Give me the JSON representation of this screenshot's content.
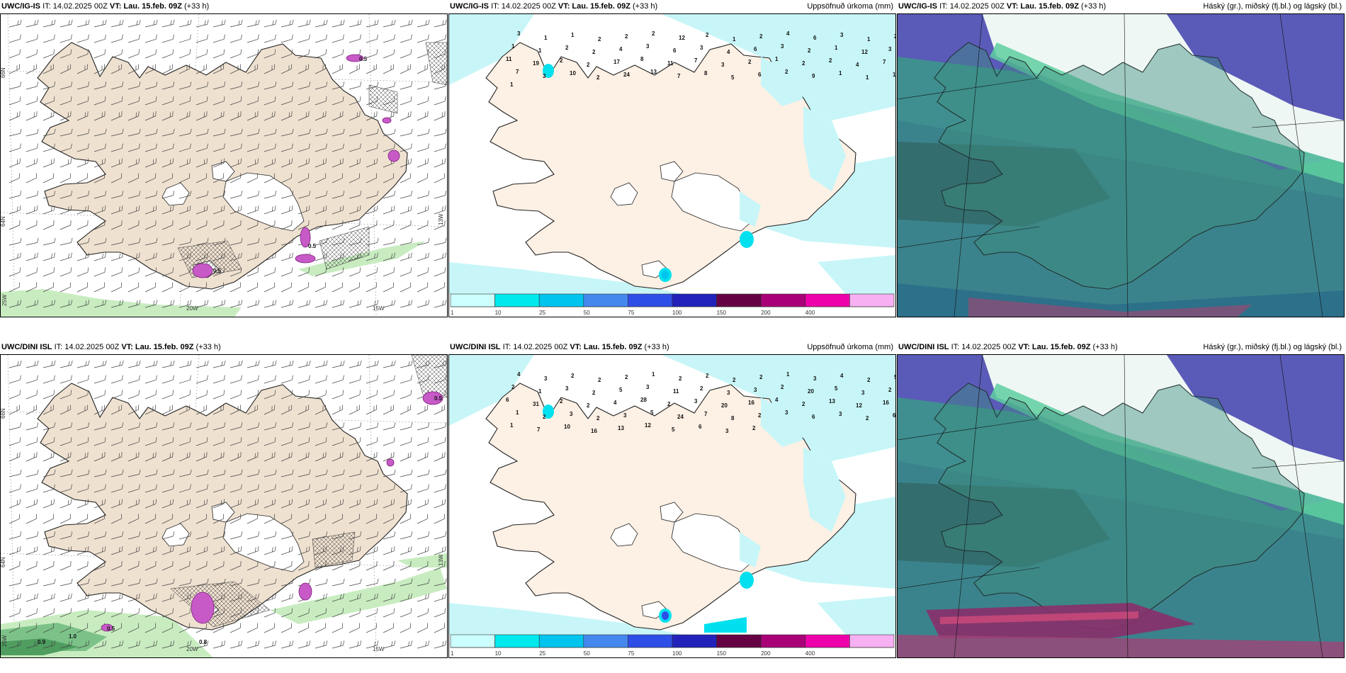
{
  "panels": [
    {
      "id": "p1",
      "model": "UWC/IG-IS",
      "it": "IT: 14.02.2025 00Z",
      "vt_label": "VT:",
      "vt": "Lau. 15.feb. 09Z",
      "lead": "(+33 h)",
      "field_title": "",
      "type": "wind",
      "lon_labels": [
        "20W",
        "15W"
      ],
      "lat_labels": [
        "66N",
        "64N",
        "25W",
        "13W"
      ],
      "values": [
        "0.5",
        "0.5",
        "0.5"
      ]
    },
    {
      "id": "p2",
      "model": "UWC/IG-IS",
      "it": "IT: 14.02.2025 00Z",
      "vt_label": "VT:",
      "vt": "Lau. 15.feb. 09Z",
      "lead": "(+33 h)",
      "field_title": "Uppsöfnuð úrkoma (mm)",
      "type": "precip",
      "values": [
        "3",
        "1",
        "1",
        "2",
        "2",
        "2",
        "12",
        "2",
        "1",
        "2",
        "4",
        "6",
        "3",
        "1",
        "2",
        "1",
        "1",
        "2",
        "2",
        "4",
        "3",
        "6",
        "3",
        "4",
        "6",
        "3",
        "2",
        "1",
        "12",
        "3",
        "11",
        "19",
        "2",
        "2",
        "17",
        "8",
        "11",
        "7",
        "3",
        "2",
        "1",
        "2",
        "2",
        "4",
        "7",
        "7",
        "3",
        "10",
        "2",
        "24",
        "13",
        "7",
        "8",
        "5",
        "6",
        "2",
        "9",
        "1",
        "1",
        "1",
        "1"
      ],
      "colorbar": {
        "ticks": [
          "1",
          "10",
          "25",
          "50",
          "75",
          "100",
          "150",
          "200",
          "400"
        ],
        "colors": [
          "#ccffff",
          "#00eaee",
          "#00c4ee",
          "#4488ee",
          "#2e4ee8",
          "#2222bb",
          "#660044",
          "#aa0077",
          "#ee00aa",
          "#f7b0f2"
        ]
      }
    },
    {
      "id": "p3",
      "model": "UWC/IG-IS",
      "it": "IT: 14.02.2025 00Z",
      "vt_label": "VT:",
      "vt": "Lau. 15.feb. 09Z",
      "lead": "(+33 h)",
      "field_title": "Háský (gr.), miðský (fj.bl.) og lágský (bl.)",
      "type": "clouds"
    },
    {
      "id": "p4",
      "model": "UWC/DINI ISL",
      "it": "IT: 14.02.2025 00Z",
      "vt_label": "VT:",
      "vt": "Lau. 15.feb. 09Z",
      "lead": "(+33 h)",
      "field_title": "",
      "type": "wind",
      "lon_labels": [
        "20W",
        "15W"
      ],
      "lat_labels": [
        "66N",
        "64N",
        "25W",
        "13W"
      ],
      "values": [
        "0.5",
        "0.9",
        "1.0",
        "0.8",
        "0.5"
      ]
    },
    {
      "id": "p5",
      "model": "UWC/DINI ISL",
      "it": "IT: 14.02.2025 00Z",
      "vt_label": "VT:",
      "vt": "Lau. 15.feb. 09Z",
      "lead": "(+33 h)",
      "field_title": "Uppsöfnuð úrkoma (mm)",
      "type": "precip",
      "values": [
        "4",
        "3",
        "2",
        "2",
        "2",
        "1",
        "2",
        "2",
        "2",
        "2",
        "1",
        "3",
        "4",
        "2",
        "5",
        "2",
        "1",
        "3",
        "2",
        "5",
        "3",
        "11",
        "2",
        "3",
        "3",
        "2",
        "20",
        "5",
        "3",
        "2",
        "6",
        "31",
        "2",
        "2",
        "4",
        "28",
        "2",
        "3",
        "20",
        "16",
        "4",
        "2",
        "13",
        "12",
        "16",
        "1",
        "2",
        "3",
        "2",
        "3",
        "5",
        "24",
        "7",
        "8",
        "2",
        "3",
        "6",
        "3",
        "2",
        "6",
        "1",
        "7",
        "10",
        "16",
        "13",
        "12",
        "5",
        "6",
        "3",
        "2"
      ],
      "colorbar": {
        "ticks": [
          "1",
          "10",
          "25",
          "50",
          "75",
          "100",
          "150",
          "200",
          "400"
        ],
        "colors": [
          "#ccffff",
          "#00eaee",
          "#00c4ee",
          "#4488ee",
          "#2e4ee8",
          "#2222bb",
          "#660044",
          "#aa0077",
          "#ee00aa",
          "#f7b0f2"
        ]
      }
    },
    {
      "id": "p6",
      "model": "UWC/DINI ISL",
      "it": "IT: 14.02.2025 00Z",
      "vt_label": "VT:",
      "vt": "Lau. 15.feb. 09Z",
      "lead": "(+33 h)",
      "field_title": "Háský (gr.), miðský (fj.bl.) og lágský (bl.)",
      "type": "clouds"
    }
  ]
}
